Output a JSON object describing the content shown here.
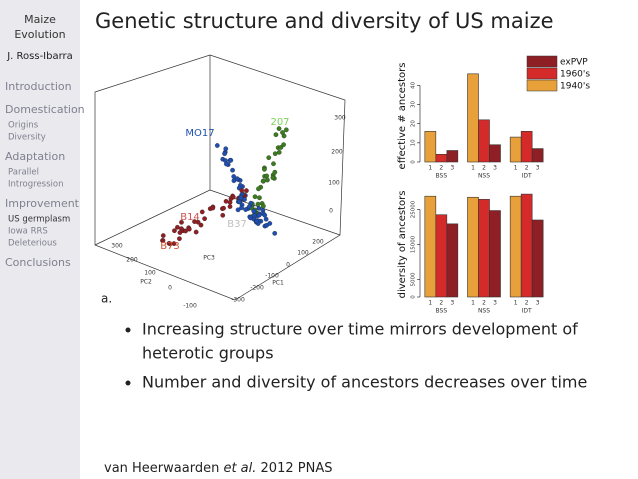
{
  "sidebar": {
    "title_lines": [
      "Maize",
      "Evolution"
    ],
    "author": "J. Ross-Ibarra",
    "sections": [
      {
        "title": "Introduction",
        "items": []
      },
      {
        "title": "Domestication",
        "items": [
          "Origins",
          "Diversity"
        ]
      },
      {
        "title": "Adaptation",
        "items": [
          "Parallel",
          "Introgression"
        ]
      },
      {
        "title": "Improvement",
        "items": [
          "US germplasm",
          "Iowa RRS",
          "Deleterious"
        ]
      },
      {
        "title": "Conclusions",
        "items": []
      }
    ]
  },
  "header": {
    "title": "Genetic structure and diversity of US maize"
  },
  "scatter": {
    "panel_label": "a.",
    "point_labels": [
      "MO17",
      "207",
      "B14",
      "B37",
      "B73"
    ],
    "axis_labels": [
      "PC1",
      "PC2",
      "PC3"
    ],
    "pc3_ticks": [
      300,
      200,
      100,
      0
    ],
    "pc1_ticks": [
      200,
      100,
      0,
      -100,
      -200,
      -300
    ],
    "pc2_ticks": [
      300,
      200,
      100,
      0,
      -100
    ]
  },
  "charts": [
    {
      "type": "bar",
      "y_label": "effective # ancestors",
      "categories": [
        "BSS",
        "NSS",
        "IDT"
      ],
      "subcategories": [
        "1",
        "2",
        "3"
      ],
      "series": [
        {
          "name": "1940's",
          "color": "#e8a03a",
          "values": [
            16,
            46,
            13
          ]
        },
        {
          "name": "1960's",
          "color": "#d42a2a",
          "values": [
            4,
            22,
            16
          ]
        },
        {
          "name": "exPVP",
          "color": "#8e1f24",
          "values": [
            6,
            9,
            7
          ]
        }
      ],
      "ylim": [
        0,
        48
      ],
      "yticks": [
        0,
        10,
        20,
        30,
        40
      ],
      "legend": "top-right"
    },
    {
      "type": "bar",
      "y_label": "diversity of ancestors",
      "categories": [
        "BSS",
        "NSS",
        "IDT"
      ],
      "subcategories": [
        "1",
        "2",
        "3"
      ],
      "series": [
        {
          "name": "1940's",
          "color": "#e8a03a",
          "values": [
            28800,
            28500,
            28800
          ]
        },
        {
          "name": "1960's",
          "color": "#d42a2a",
          "values": [
            23500,
            27900,
            29400
          ]
        },
        {
          "name": "exPVP",
          "color": "#8e1f24",
          "values": [
            20900,
            24700,
            22000
          ]
        }
      ],
      "ylim": [
        0,
        30000
      ],
      "yticks": [
        0,
        5000,
        15000,
        25000
      ]
    }
  ],
  "bullets": [
    [
      "Increasing structure over time mirrors development of",
      "heterotic groups"
    ],
    [
      "Number and diversity of ancestors decreases over time"
    ]
  ],
  "citation": [
    "van Heerwaarden ",
    "et al.",
    " 2012 PNAS"
  ]
}
